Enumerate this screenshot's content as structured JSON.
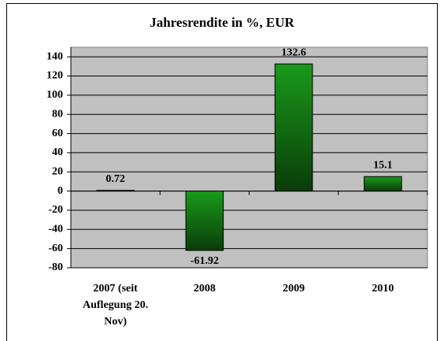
{
  "chart_data": {
    "type": "bar",
    "title": "Jahresrendite in %, EUR",
    "categories": [
      "2007 (seit Auflegung 20. Nov)",
      "2008",
      "2009",
      "2010"
    ],
    "values": [
      0.72,
      -61.92,
      132.6,
      15.1
    ],
    "color": "#1a8c1a",
    "ylim": [
      -80,
      150
    ],
    "yticks": [
      -80,
      -60,
      -40,
      -20,
      0,
      20,
      40,
      60,
      80,
      100,
      120,
      140
    ],
    "grid": true
  }
}
